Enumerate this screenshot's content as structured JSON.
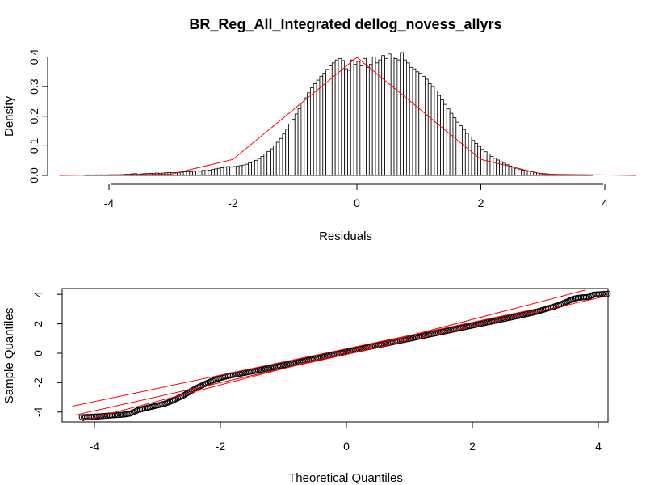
{
  "chart_data": [
    {
      "type": "histogram",
      "title": "BR_Reg_All_Integrated dellog_novess_allyrs",
      "xlabel": "Residuals",
      "ylabel": "Density",
      "xlim": [
        -4.8,
        4.5
      ],
      "ylim": [
        0,
        0.4
      ],
      "x_ticks": [
        "-4",
        "-2",
        "0",
        "2",
        "4"
      ],
      "y_ticks": [
        "0.0",
        "0.1",
        "0.2",
        "0.3",
        "0.4"
      ],
      "bin_start": -4.4,
      "bin_width": 0.05,
      "density_values": [
        0.001,
        0.002,
        0.001,
        0.002,
        0.001,
        0.002,
        0.001,
        0.001,
        0.002,
        0.002,
        0.002,
        0.002,
        0.003,
        0.004,
        0.004,
        0.005,
        0.006,
        0.004,
        0.005,
        0.006,
        0.006,
        0.007,
        0.006,
        0.008,
        0.007,
        0.008,
        0.009,
        0.01,
        0.009,
        0.01,
        0.01,
        0.011,
        0.012,
        0.013,
        0.012,
        0.014,
        0.015,
        0.014,
        0.017,
        0.016,
        0.018,
        0.02,
        0.022,
        0.024,
        0.026,
        0.028,
        0.03,
        0.028,
        0.03,
        0.031,
        0.033,
        0.035,
        0.038,
        0.042,
        0.046,
        0.051,
        0.057,
        0.064,
        0.072,
        0.081,
        0.09,
        0.1,
        0.112,
        0.125,
        0.14,
        0.156,
        0.173,
        0.19,
        0.208,
        0.226,
        0.244,
        0.262,
        0.279,
        0.296,
        0.31,
        0.322,
        0.335,
        0.345,
        0.358,
        0.37,
        0.38,
        0.39,
        0.395,
        0.388,
        0.36,
        0.355,
        0.39,
        0.375,
        0.385,
        0.37,
        0.395,
        0.365,
        0.375,
        0.4,
        0.38,
        0.39,
        0.405,
        0.395,
        0.41,
        0.4,
        0.395,
        0.39,
        0.415,
        0.39,
        0.38,
        0.365,
        0.36,
        0.35,
        0.345,
        0.335,
        0.325,
        0.31,
        0.3,
        0.285,
        0.27,
        0.255,
        0.24,
        0.225,
        0.21,
        0.195,
        0.18,
        0.168,
        0.155,
        0.142,
        0.13,
        0.118,
        0.108,
        0.098,
        0.088,
        0.08,
        0.072,
        0.064,
        0.058,
        0.052,
        0.046,
        0.041,
        0.036,
        0.032,
        0.028,
        0.024,
        0.021,
        0.018,
        0.016,
        0.014,
        0.012,
        0.01,
        0.008,
        0.007,
        0.006,
        0.005,
        0.004,
        0.004,
        0.003,
        0.003,
        0.002,
        0.002,
        0.002,
        0.001,
        0.001,
        0.001,
        0.001,
        0.002,
        0.001,
        0.001
      ],
      "overlay_line_x": [
        -4.8,
        -3.0,
        -2.0,
        0.0,
        2.0,
        3.0,
        4.5
      ],
      "overlay_line_y": [
        0.0,
        0.004,
        0.054,
        0.399,
        0.054,
        0.004,
        0.0
      ],
      "line_color": "#ff0000"
    },
    {
      "type": "scatter",
      "subtype": "qq-plot",
      "xlabel": "Theoretical Quantiles",
      "ylabel": "Sample Quantiles",
      "xlim": [
        -4.35,
        4.3
      ],
      "ylim": [
        -4.7,
        4.35
      ],
      "x_ticks": [
        "-4",
        "-2",
        "0",
        "2",
        "4"
      ],
      "y_ticks": [
        "-4",
        "-2",
        "0",
        "2",
        "4"
      ],
      "quantile_points": [
        [
          -4.2,
          -4.35
        ],
        [
          -3.95,
          -4.3
        ],
        [
          -3.8,
          -4.25
        ],
        [
          -3.7,
          -4.22
        ],
        [
          -3.62,
          -4.2
        ],
        [
          -3.55,
          -4.18
        ],
        [
          -3.5,
          -4.15
        ],
        [
          -3.45,
          -4.12
        ],
        [
          -3.4,
          -4.05
        ],
        [
          -3.35,
          -3.95
        ],
        [
          -3.3,
          -3.85
        ],
        [
          -3.2,
          -3.75
        ],
        [
          -3.1,
          -3.65
        ],
        [
          -3.0,
          -3.55
        ],
        [
          -2.9,
          -3.45
        ],
        [
          -2.8,
          -3.3
        ],
        [
          -2.7,
          -3.1
        ],
        [
          -2.6,
          -2.9
        ],
        [
          -2.5,
          -2.65
        ],
        [
          -2.4,
          -2.4
        ],
        [
          -2.3,
          -2.2
        ],
        [
          -2.2,
          -2.0
        ],
        [
          -2.1,
          -1.82
        ],
        [
          -2.0,
          -1.68
        ],
        [
          -1.9,
          -1.57
        ],
        [
          -1.8,
          -1.48
        ],
        [
          -1.6,
          -1.32
        ],
        [
          -1.4,
          -1.16
        ],
        [
          -1.2,
          -0.99
        ],
        [
          -1.0,
          -0.82
        ],
        [
          -0.8,
          -0.64
        ],
        [
          -0.6,
          -0.46
        ],
        [
          -0.4,
          -0.28
        ],
        [
          -0.2,
          -0.09
        ],
        [
          0.0,
          0.1
        ],
        [
          0.2,
          0.28
        ],
        [
          0.4,
          0.46
        ],
        [
          0.6,
          0.63
        ],
        [
          0.8,
          0.81
        ],
        [
          1.0,
          0.98
        ],
        [
          1.2,
          1.16
        ],
        [
          1.4,
          1.34
        ],
        [
          1.6,
          1.52
        ],
        [
          1.8,
          1.7
        ],
        [
          2.0,
          1.88
        ],
        [
          2.2,
          2.06
        ],
        [
          2.4,
          2.24
        ],
        [
          2.6,
          2.42
        ],
        [
          2.8,
          2.6
        ],
        [
          3.0,
          2.8
        ],
        [
          3.1,
          2.92
        ],
        [
          3.2,
          3.05
        ],
        [
          3.3,
          3.18
        ],
        [
          3.4,
          3.32
        ],
        [
          3.5,
          3.5
        ],
        [
          3.55,
          3.6
        ],
        [
          3.6,
          3.7
        ],
        [
          3.67,
          3.76
        ],
        [
          3.75,
          3.8
        ],
        [
          3.85,
          3.83
        ],
        [
          4.15,
          4.05
        ],
        [
          3.92,
          3.98
        ]
      ],
      "reference_lines": [
        [
          [
            -4.2,
            -4.6
          ],
          [
            3.8,
            4.3
          ]
        ],
        [
          [
            -4.3,
            -4.2
          ],
          [
            4.2,
            3.95
          ]
        ],
        [
          [
            -4.35,
            -3.6
          ],
          [
            3.0,
            3.0
          ]
        ]
      ],
      "line_color": "#ff0000"
    }
  ]
}
